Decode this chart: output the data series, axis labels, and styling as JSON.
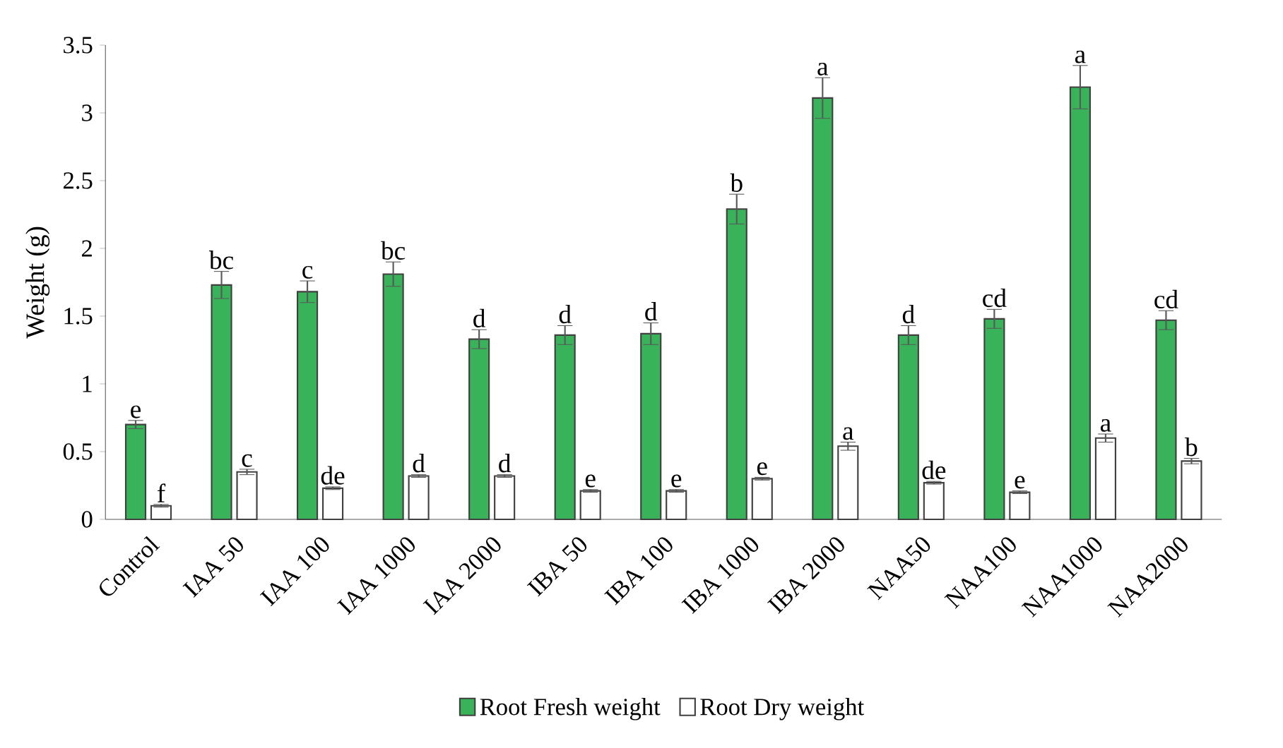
{
  "chart_data": {
    "type": "bar",
    "ylabel": "Weight  (g)",
    "categories": [
      "Control",
      "IAA 50",
      "IAA 100",
      "IAA 1000",
      "IAA 2000",
      "IBA 50",
      "IBA 100",
      "IBA 1000",
      "IBA 2000",
      "NAA50",
      "NAA100",
      "NAA1000",
      "NAA2000"
    ],
    "series": [
      {
        "name": "Root Fresh weight",
        "color": "#38b35a",
        "values": [
          0.7,
          1.73,
          1.68,
          1.81,
          1.33,
          1.36,
          1.37,
          2.29,
          3.11,
          1.36,
          1.48,
          3.19,
          1.47
        ],
        "errors": [
          0.03,
          0.1,
          0.08,
          0.09,
          0.07,
          0.07,
          0.08,
          0.11,
          0.15,
          0.07,
          0.07,
          0.16,
          0.07
        ],
        "value_labels": [
          "e",
          "bc",
          "c",
          "bc",
          "d",
          "d",
          "d",
          "b",
          "a",
          "d",
          "cd",
          "a",
          "cd"
        ]
      },
      {
        "name": "Root Dry weight",
        "color": "#ffffff",
        "values": [
          0.1,
          0.35,
          0.23,
          0.32,
          0.32,
          0.21,
          0.21,
          0.3,
          0.54,
          0.27,
          0.2,
          0.6,
          0.43
        ],
        "errors": [
          0.01,
          0.02,
          0.01,
          0.01,
          0.01,
          0.01,
          0.01,
          0.01,
          0.03,
          0.01,
          0.01,
          0.03,
          0.02
        ],
        "value_labels": [
          "f",
          "c",
          "de",
          "d",
          "d",
          "e",
          "e",
          "e",
          "a",
          "de",
          "e",
          "a",
          "b"
        ]
      }
    ],
    "ylim": [
      0,
      3.5
    ],
    "yticks": [
      0,
      0.5,
      1,
      1.5,
      2,
      2.5,
      3,
      3.5
    ],
    "legend": "bottom"
  }
}
